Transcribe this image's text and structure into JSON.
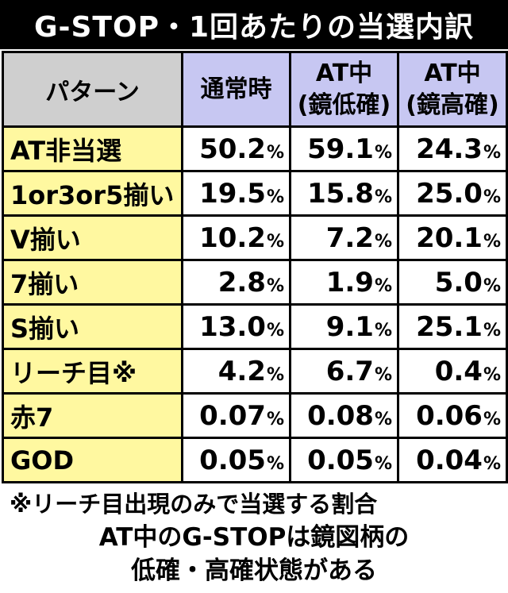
{
  "title": "G-STOP・1回あたりの当選内訳",
  "table": {
    "header": {
      "pattern": "パターン",
      "columns": [
        {
          "line1": "通常時",
          "line2": ""
        },
        {
          "line1": "AT中",
          "line2": "(鏡低確)"
        },
        {
          "line1": "AT中",
          "line2": "(鏡高確)"
        }
      ]
    },
    "percent_sign": "%",
    "rows": [
      {
        "label": "AT非当選",
        "values": [
          "50.2",
          "59.1",
          "24.3"
        ]
      },
      {
        "label": "1or3or5揃い",
        "values": [
          "19.5",
          "15.8",
          "25.0"
        ]
      },
      {
        "label": "V揃い",
        "values": [
          "10.2",
          "7.2",
          "20.1"
        ]
      },
      {
        "label": "7揃い",
        "values": [
          "2.8",
          "1.9",
          "5.0"
        ]
      },
      {
        "label": "S揃い",
        "values": [
          "13.0",
          "9.1",
          "25.1"
        ]
      },
      {
        "label": "リーチ目※",
        "values": [
          "4.2",
          "6.7",
          "0.4"
        ]
      },
      {
        "label": "赤7",
        "values": [
          "0.07",
          "0.08",
          "0.06"
        ]
      },
      {
        "label": "GOD",
        "values": [
          "0.05",
          "0.05",
          "0.04"
        ]
      }
    ]
  },
  "note": "※リーチ目出現のみで当選する割合",
  "footer": {
    "line1": "AT中のG-STOPは鏡図柄の",
    "line2": "低確・高確状態がある"
  },
  "colors": {
    "title_bg": "#000000",
    "pattern_header_bg": "#cfcfcf",
    "column_header_bg": "#c7c7f2",
    "label_bg": "#fff8a0"
  }
}
